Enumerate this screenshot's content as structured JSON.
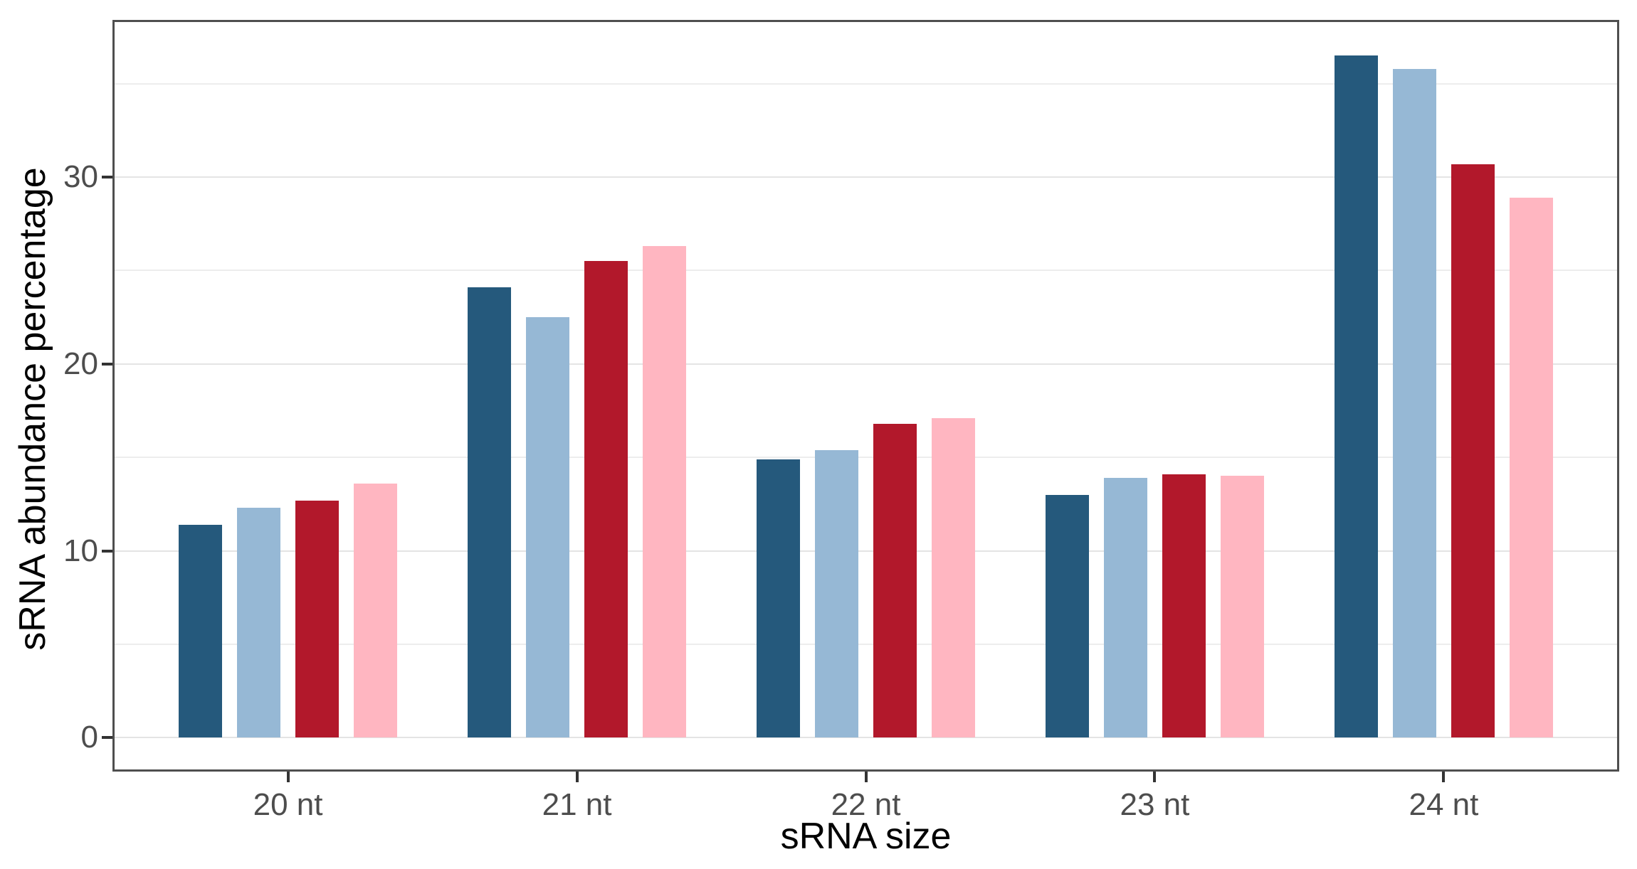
{
  "page": {
    "background": "#ffffff"
  },
  "chart_data": {
    "type": "bar",
    "title": "",
    "xlabel": "sRNA size",
    "ylabel": "sRNA abundance percentage",
    "categories": [
      "20 nt",
      "21 nt",
      "22 nt",
      "23 nt",
      "24 nt"
    ],
    "series": [
      {
        "name": "dark-blue",
        "color": "#25597C",
        "values": [
          11.4,
          24.1,
          14.9,
          13.0,
          36.5
        ]
      },
      {
        "name": "light-blue",
        "color": "#96B8D5",
        "values": [
          12.3,
          22.5,
          15.4,
          13.9,
          35.8
        ]
      },
      {
        "name": "dark-red",
        "color": "#B2182B",
        "values": [
          12.7,
          25.5,
          16.8,
          14.1,
          30.7
        ]
      },
      {
        "name": "pink",
        "color": "#FFB6C1",
        "values": [
          13.6,
          26.3,
          17.1,
          14.0,
          28.9
        ]
      }
    ],
    "ylim": [
      -1.7,
      38.3
    ],
    "y_major_ticks": [
      0,
      10,
      20,
      30
    ],
    "y_minor_gridlines": [
      5,
      15,
      25,
      35
    ],
    "grid": "horizontal",
    "legend": "none",
    "bar_layout": "grouped",
    "colors": {
      "panel_border": "#4F4F4F",
      "major_grid": "#E4E4E4",
      "minor_grid": "#EDEDED",
      "tick_mark": "#333333",
      "tick_label": "#4D4D4D",
      "axis_title": "#000000"
    }
  }
}
